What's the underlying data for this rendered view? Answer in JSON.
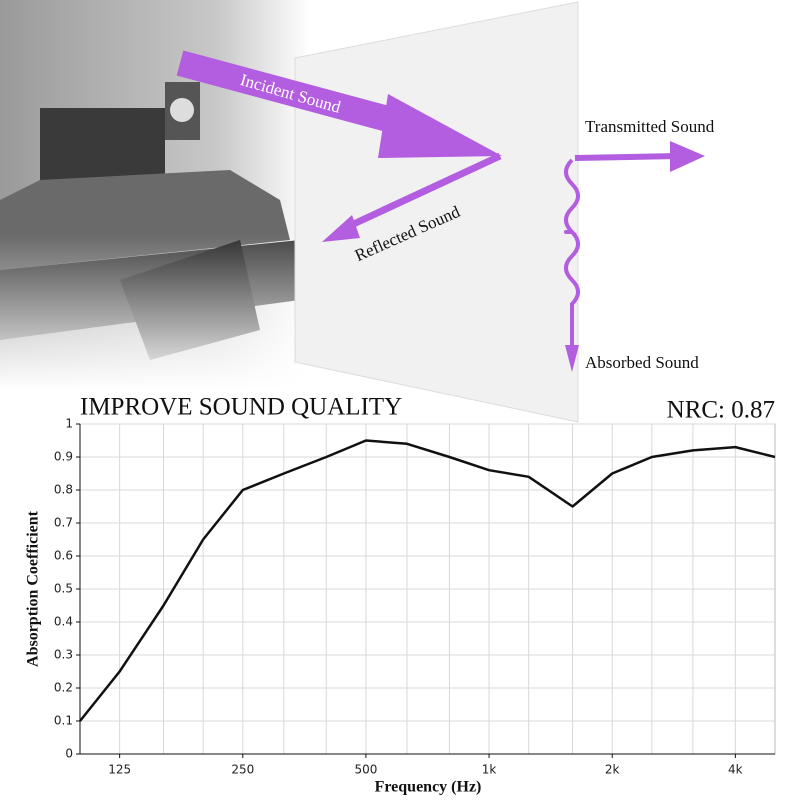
{
  "illustration": {
    "incident": "Incident Sound",
    "reflected": "Reflected Sound",
    "transmitted": "Transmitted Sound",
    "absorbed": "Absorbed Sound"
  },
  "chart_data": {
    "type": "line",
    "title": "IMPROVE SOUND QUALITY",
    "annotation": "NRC: 0.87",
    "x_label": "Frequency (Hz)",
    "y_label": "Absorption Coefficient",
    "x": [
      100,
      125,
      160,
      200,
      250,
      315,
      400,
      500,
      630,
      800,
      1000,
      1250,
      1600,
      2000,
      2500,
      3150,
      4000,
      5000
    ],
    "series": [
      {
        "color": "#111111",
        "values": [
          0.1,
          0.25,
          0.45,
          0.65,
          0.8,
          0.85,
          0.9,
          0.95,
          0.94,
          0.9,
          0.86,
          0.84,
          0.75,
          0.85,
          0.9,
          0.92,
          0.93,
          0.9
        ]
      }
    ],
    "xscale": "log",
    "xlim": [
      100,
      5000
    ],
    "xticks": [
      125,
      250,
      500,
      {
        "value": 1000,
        "label": "1k"
      },
      {
        "value": 2000,
        "label": "2k"
      },
      {
        "value": 4000,
        "label": "4k"
      }
    ],
    "xminor": [
      160,
      200,
      315,
      400,
      630,
      800,
      1250,
      1600,
      2500,
      3150
    ],
    "ylim": [
      0,
      1
    ],
    "yticks": [
      0,
      0.1,
      0.2,
      0.3,
      0.4,
      0.5,
      0.6,
      0.7,
      0.8,
      0.9,
      1
    ],
    "grid": true
  }
}
